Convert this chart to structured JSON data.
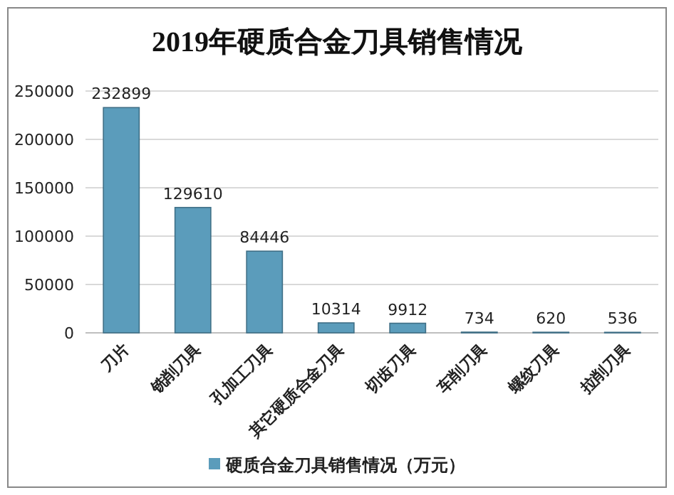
{
  "chart_data": {
    "type": "bar",
    "title": "2019年硬质合金刀具销售情况",
    "categories": [
      "刀片",
      "铣削刀具",
      "孔加工刀具",
      "其它硬质合金刀具",
      "切齿刀具",
      "车削刀具",
      "螺纹刀具",
      "拉削刀具"
    ],
    "series": [
      {
        "name": "硬质合金刀具销售情况（万元）",
        "color": "#5b9cbb",
        "values": [
          232899,
          129610,
          84446,
          10314,
          9912,
          734,
          620,
          536
        ]
      }
    ],
    "ylim": [
      0,
      250000
    ],
    "yticks": [
      0,
      50000,
      100000,
      150000,
      200000,
      250000
    ],
    "grid": "y",
    "legend": "bottom",
    "data_labels": true
  }
}
